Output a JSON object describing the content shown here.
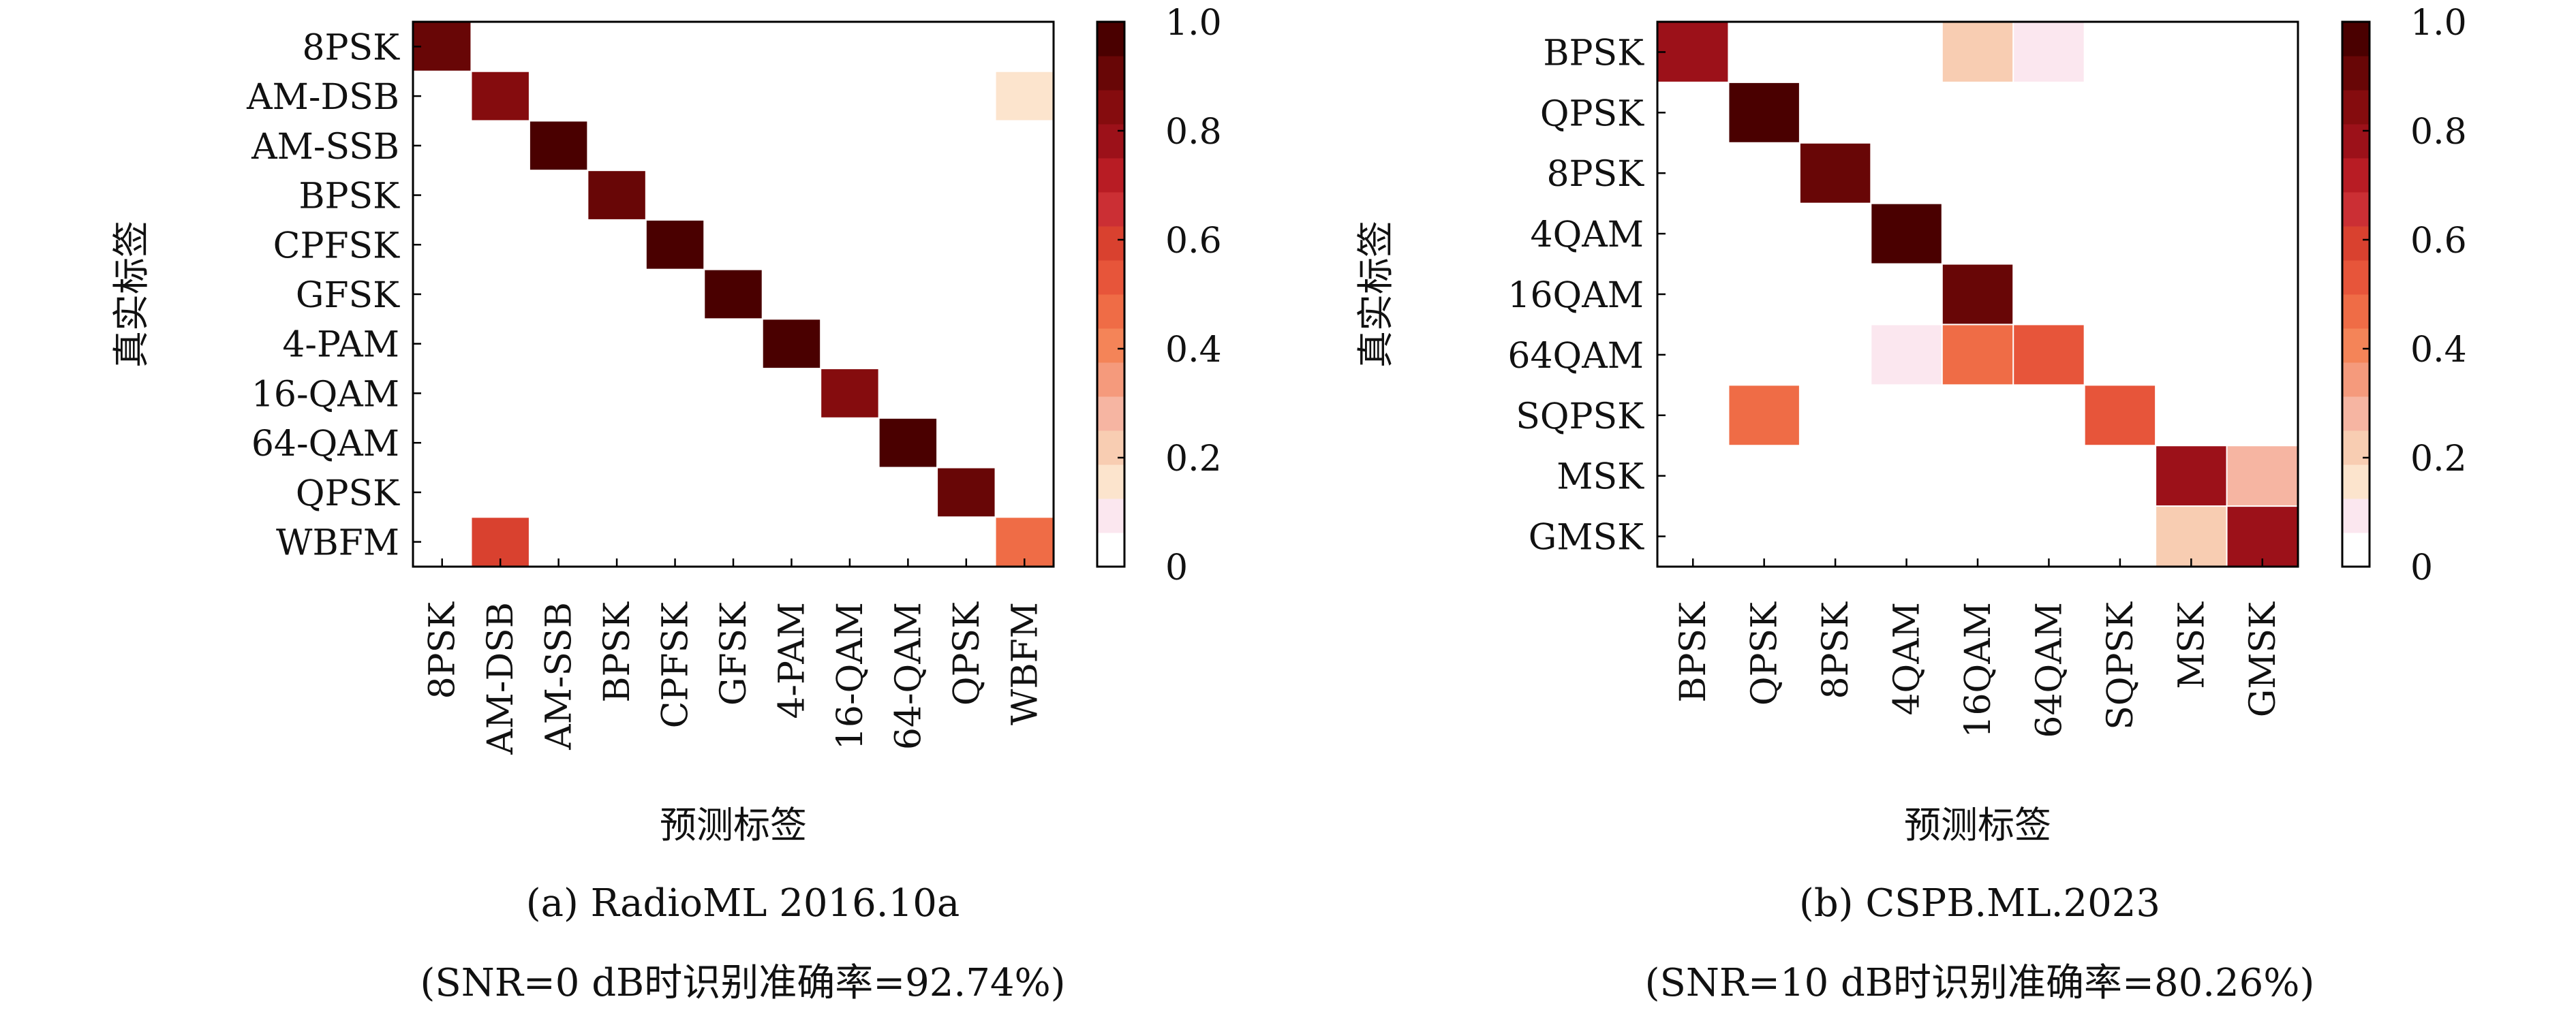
{
  "palette": [
    "#ffffff",
    "#fbe7ef",
    "#fce4cd",
    "#f8cdb2",
    "#f6b5a2",
    "#f59a7c",
    "#f48458",
    "#ef6c46",
    "#e7553a",
    "#d9412f",
    "#cb2f34",
    "#b81c24",
    "#9c1119",
    "#850c0e",
    "#680606",
    "#4a0000"
  ],
  "chart_data": [
    {
      "type": "heatmap",
      "title": "",
      "xlabel": "预测标签",
      "ylabel": "真实标签",
      "caption": "(a) RadioML 2016.10a",
      "subcaption": "(SNR=0 dB时识别准确率=92.74%)",
      "row_labels": [
        "8PSK",
        "AM-DSB",
        "AM-SSB",
        "BPSK",
        "CPFSK",
        "GFSK",
        "4-PAM",
        "16-QAM",
        "64-QAM",
        "QPSK",
        "WBFM"
      ],
      "col_labels": [
        "8PSK",
        "AM-DSB",
        "AM-SSB",
        "BPSK",
        "CPFSK",
        "GFSK",
        "4-PAM",
        "16-QAM",
        "64-QAM",
        "QPSK",
        "WBFM"
      ],
      "colorbar_range": [
        0,
        1
      ],
      "colorbar_ticks": [
        "0",
        "0.2",
        "0.4",
        "0.6",
        "0.8",
        "1.0"
      ],
      "matrix": [
        [
          0.95,
          0,
          0,
          0,
          0,
          0,
          0,
          0,
          0,
          0,
          0
        ],
        [
          0,
          0.88,
          0,
          0,
          0,
          0,
          0,
          0,
          0,
          0,
          0.12
        ],
        [
          0,
          0,
          1.0,
          0,
          0,
          0,
          0,
          0,
          0,
          0,
          0
        ],
        [
          0,
          0,
          0,
          0.95,
          0,
          0,
          0,
          0,
          0,
          0,
          0
        ],
        [
          0,
          0,
          0,
          0,
          1.0,
          0,
          0,
          0,
          0,
          0,
          0
        ],
        [
          0,
          0,
          0,
          0,
          0,
          1.0,
          0,
          0,
          0,
          0,
          0
        ],
        [
          0,
          0,
          0,
          0,
          0,
          0,
          1.0,
          0,
          0,
          0,
          0
        ],
        [
          0,
          0,
          0,
          0,
          0,
          0,
          0,
          0.88,
          0,
          0,
          0
        ],
        [
          0,
          0,
          0,
          0,
          0,
          0,
          0,
          0,
          1.0,
          0,
          0
        ],
        [
          0,
          0,
          0,
          0,
          0,
          0,
          0,
          0,
          0,
          0.9,
          0
        ],
        [
          0,
          0.6,
          0,
          0,
          0,
          0,
          0,
          0,
          0,
          0,
          0.45
        ]
      ]
    },
    {
      "type": "heatmap",
      "title": "",
      "xlabel": "预测标签",
      "ylabel": "真实标签",
      "caption": "(b) CSPB.ML.2023",
      "subcaption": "(SNR=10 dB时识别准确率=80.26%)",
      "row_labels": [
        "BPSK",
        "QPSK",
        "8PSK",
        "4QAM",
        "16QAM",
        "64QAM",
        "SQPSK",
        "MSK",
        "GMSK"
      ],
      "col_labels": [
        "BPSK",
        "QPSK",
        "8PSK",
        "4QAM",
        "16QAM",
        "64QAM",
        "SQPSK",
        "MSK",
        "GMSK"
      ],
      "colorbar_range": [
        0,
        1
      ],
      "colorbar_ticks": [
        "0",
        "0.2",
        "0.4",
        "0.6",
        "0.8",
        "1.0"
      ],
      "matrix": [
        [
          0.8,
          0,
          0,
          0,
          0.2,
          0.07,
          0,
          0,
          0
        ],
        [
          0,
          0.97,
          0,
          0,
          0,
          0,
          0,
          0,
          0
        ],
        [
          0,
          0,
          0.9,
          0,
          0,
          0,
          0,
          0,
          0
        ],
        [
          0,
          0,
          0,
          0.97,
          0,
          0,
          0,
          0,
          0
        ],
        [
          0,
          0,
          0,
          0,
          0.9,
          0,
          0,
          0,
          0
        ],
        [
          0,
          0,
          0,
          0.07,
          0.45,
          0.55,
          0,
          0,
          0
        ],
        [
          0,
          0.48,
          0,
          0,
          0,
          0,
          0.55,
          0,
          0
        ],
        [
          0,
          0,
          0,
          0,
          0,
          0,
          0,
          0.8,
          0.28
        ],
        [
          0,
          0,
          0,
          0,
          0,
          0,
          0,
          0.22,
          0.82
        ]
      ]
    }
  ]
}
